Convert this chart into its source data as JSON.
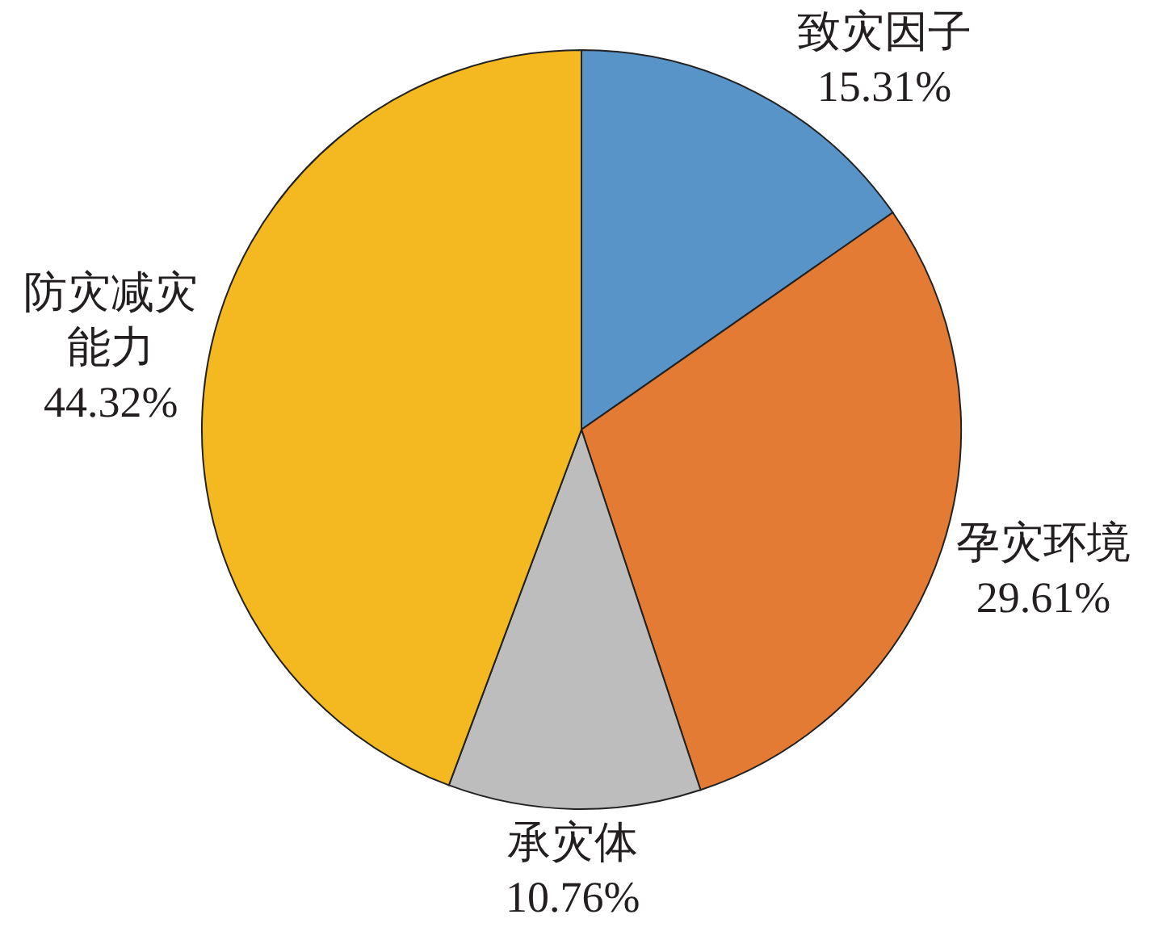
{
  "chart_data": {
    "type": "pie",
    "categories": [
      "致灾因子",
      "孕灾环境",
      "承灾体",
      "防灾减灾能力"
    ],
    "values": [
      15.31,
      29.61,
      10.76,
      44.32
    ],
    "colors": [
      "#5894c8",
      "#e37b35",
      "#bdbdbd",
      "#f4b920"
    ],
    "value_labels": [
      "15.31%",
      "29.61%",
      "10.76%",
      "44.32%"
    ]
  }
}
